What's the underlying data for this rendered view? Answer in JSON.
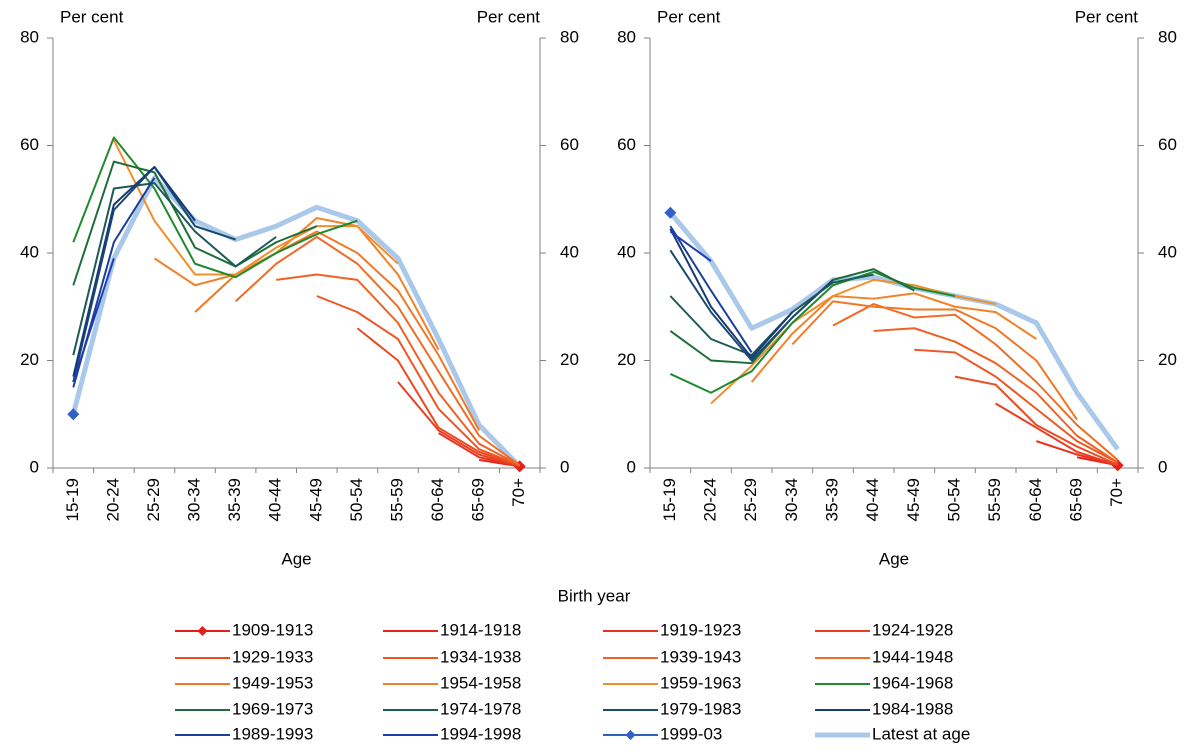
{
  "chart_data": [
    {
      "type": "line",
      "y_label": "Per cent",
      "y2_label": "Per cent",
      "x_label": "Age",
      "categories": [
        "15-19",
        "20-24",
        "25-29",
        "30-34",
        "35-39",
        "40-44",
        "45-49",
        "50-54",
        "55-59",
        "60-64",
        "65-69",
        "70+"
      ],
      "ylim": [
        0,
        80
      ],
      "yticks": [
        0,
        20,
        40,
        60,
        80
      ],
      "y2lim": [
        0,
        80
      ],
      "y2ticks": [
        0,
        20,
        40,
        60,
        80
      ],
      "series": [
        {
          "name": "1909-1913",
          "color": "#e41e1a",
          "marker": "diamond",
          "values": [
            null,
            null,
            null,
            null,
            null,
            null,
            null,
            null,
            null,
            null,
            null,
            0.3
          ]
        },
        {
          "name": "1914-1918",
          "color": "#e6261b",
          "values": [
            null,
            null,
            null,
            null,
            null,
            null,
            null,
            null,
            null,
            null,
            1.5,
            0.3
          ]
        },
        {
          "name": "1919-1923",
          "color": "#e8321d",
          "values": [
            null,
            null,
            null,
            null,
            null,
            null,
            null,
            null,
            null,
            6.5,
            2,
            0.3
          ]
        },
        {
          "name": "1924-1928",
          "color": "#ea3e1f",
          "values": [
            null,
            null,
            null,
            null,
            null,
            null,
            null,
            null,
            16,
            7,
            2.5,
            0.3
          ]
        },
        {
          "name": "1929-1933",
          "color": "#ec4a21",
          "values": [
            null,
            null,
            null,
            null,
            null,
            null,
            null,
            26,
            20,
            7.5,
            3,
            0.4
          ]
        },
        {
          "name": "1934-1938",
          "color": "#ee5623",
          "values": [
            null,
            null,
            null,
            null,
            null,
            null,
            32,
            29,
            24,
            11,
            3.5,
            0.5
          ]
        },
        {
          "name": "1939-1943",
          "color": "#ef6125",
          "values": [
            null,
            null,
            null,
            null,
            null,
            35,
            36,
            35,
            27,
            14,
            4.5,
            0.5
          ]
        },
        {
          "name": "1944-1948",
          "color": "#f06c26",
          "values": [
            null,
            null,
            null,
            null,
            31,
            38,
            43,
            38,
            30,
            18,
            6,
            0.5
          ]
        },
        {
          "name": "1949-1953",
          "color": "#f17727",
          "values": [
            null,
            null,
            null,
            29,
            36,
            40,
            44,
            40,
            33,
            21,
            7,
            null
          ]
        },
        {
          "name": "1954-1958",
          "color": "#f28229",
          "values": [
            null,
            null,
            39,
            34,
            36,
            40,
            46.5,
            45,
            36,
            22,
            null,
            null
          ]
        },
        {
          "name": "1959-1963",
          "color": "#f38e2c",
          "values": [
            null,
            61,
            46,
            36,
            36,
            41,
            45,
            45,
            38,
            null,
            null,
            null
          ]
        },
        {
          "name": "1964-1968",
          "color": "#1f8a2e",
          "values": [
            42,
            61.5,
            52,
            38,
            35.5,
            40,
            43.5,
            46,
            null,
            null,
            null,
            null
          ]
        },
        {
          "name": "1969-1973",
          "color": "#1d6e3a",
          "values": [
            34,
            57,
            55,
            41,
            37.5,
            42,
            45,
            null,
            null,
            null,
            null,
            null
          ]
        },
        {
          "name": "1974-1978",
          "color": "#1b5a55",
          "values": [
            21,
            52,
            53,
            44,
            37.5,
            43,
            null,
            null,
            null,
            null,
            null,
            null
          ]
        },
        {
          "name": "1979-1983",
          "color": "#1b4a6e",
          "values": [
            16,
            48,
            56,
            45,
            42.5,
            null,
            null,
            null,
            null,
            null,
            null,
            null
          ]
        },
        {
          "name": "1984-1988",
          "color": "#173a78",
          "values": [
            17,
            49,
            56,
            46,
            null,
            null,
            null,
            null,
            null,
            null,
            null,
            null
          ]
        },
        {
          "name": "1989-1993",
          "color": "#1a3e9c",
          "values": [
            15,
            42,
            54,
            null,
            null,
            null,
            null,
            null,
            null,
            null,
            null,
            null
          ]
        },
        {
          "name": "1994-1998",
          "color": "#1e3cb4",
          "values": [
            16,
            39,
            null,
            null,
            null,
            null,
            null,
            null,
            null,
            null,
            null,
            null
          ]
        },
        {
          "name": "1999-03",
          "color": "#3060c8",
          "marker": "diamond",
          "values": [
            10,
            null,
            null,
            null,
            null,
            null,
            null,
            null,
            null,
            null,
            null,
            null
          ]
        },
        {
          "name": "Latest at age",
          "color": "#a9c8ea",
          "line_width": 5,
          "values": [
            10,
            39,
            54,
            46,
            42.5,
            45,
            48.5,
            46,
            39,
            24,
            8,
            0.3
          ]
        }
      ]
    },
    {
      "type": "line",
      "y_label": "Per cent",
      "y2_label": "Per cent",
      "x_label": "Age",
      "categories": [
        "15-19",
        "20-24",
        "25-29",
        "30-34",
        "35-39",
        "40-44",
        "45-49",
        "50-54",
        "55-59",
        "60-64",
        "65-69",
        "70+"
      ],
      "ylim": [
        0,
        80
      ],
      "yticks": [
        0,
        20,
        40,
        60,
        80
      ],
      "y2lim": [
        0,
        80
      ],
      "y2ticks": [
        0,
        20,
        40,
        60,
        80
      ],
      "series": [
        {
          "name": "1909-1913",
          "color": "#e41e1a",
          "marker": "diamond",
          "values": [
            null,
            null,
            null,
            null,
            null,
            null,
            null,
            null,
            null,
            null,
            null,
            0.5
          ]
        },
        {
          "name": "1914-1918",
          "color": "#e6261b",
          "values": [
            null,
            null,
            null,
            null,
            null,
            null,
            null,
            null,
            null,
            null,
            2,
            0.5
          ]
        },
        {
          "name": "1919-1923",
          "color": "#e8321d",
          "values": [
            null,
            null,
            null,
            null,
            null,
            null,
            null,
            null,
            null,
            5,
            2.5,
            0.5
          ]
        },
        {
          "name": "1924-1928",
          "color": "#ea3e1f",
          "values": [
            null,
            null,
            null,
            null,
            null,
            null,
            null,
            null,
            12,
            7.5,
            3,
            0.5
          ]
        },
        {
          "name": "1929-1933",
          "color": "#ec4a21",
          "values": [
            null,
            null,
            null,
            null,
            null,
            null,
            null,
            17,
            15.5,
            8,
            4,
            0.6
          ]
        },
        {
          "name": "1934-1938",
          "color": "#ee5623",
          "values": [
            null,
            null,
            null,
            null,
            null,
            null,
            22,
            21.5,
            17,
            11,
            5,
            1
          ]
        },
        {
          "name": "1939-1943",
          "color": "#ef6125",
          "values": [
            null,
            null,
            null,
            null,
            null,
            25.5,
            26,
            23.5,
            19.5,
            14,
            6,
            1
          ]
        },
        {
          "name": "1944-1948",
          "color": "#f06c26",
          "values": [
            null,
            null,
            null,
            null,
            26.5,
            30.5,
            28,
            28.5,
            23,
            16,
            8,
            1.5
          ]
        },
        {
          "name": "1949-1953",
          "color": "#f17727",
          "values": [
            null,
            null,
            null,
            23,
            31,
            30,
            29.5,
            29.5,
            26,
            20,
            9,
            null
          ]
        },
        {
          "name": "1954-1958",
          "color": "#f28229",
          "values": [
            null,
            null,
            16,
            25,
            32,
            31.5,
            32.5,
            30,
            29,
            24,
            null,
            null
          ]
        },
        {
          "name": "1959-1963",
          "color": "#f38e2c",
          "values": [
            null,
            12,
            19,
            27,
            32,
            35,
            34,
            32,
            30.5,
            null,
            null,
            null
          ]
        },
        {
          "name": "1964-1968",
          "color": "#1f8a2e",
          "values": [
            17.5,
            14,
            18,
            27,
            34,
            36.5,
            33.5,
            32,
            null,
            null,
            null,
            null
          ]
        },
        {
          "name": "1969-1973",
          "color": "#1d6e3a",
          "values": [
            25.5,
            20,
            19.5,
            28,
            35,
            37,
            33,
            null,
            null,
            null,
            null,
            null
          ]
        },
        {
          "name": "1974-1978",
          "color": "#1b5a55",
          "values": [
            32,
            24,
            21,
            29,
            34.5,
            36,
            null,
            null,
            null,
            null,
            null,
            null
          ]
        },
        {
          "name": "1979-1983",
          "color": "#1b4a6e",
          "values": [
            40.5,
            29,
            20,
            28,
            35,
            null,
            null,
            null,
            null,
            null,
            null,
            null
          ]
        },
        {
          "name": "1984-1988",
          "color": "#173a78",
          "values": [
            44.5,
            30,
            20.5,
            29,
            null,
            null,
            null,
            null,
            null,
            null,
            null,
            null
          ]
        },
        {
          "name": "1989-1993",
          "color": "#1a3e9c",
          "values": [
            45,
            33,
            21.5,
            null,
            null,
            null,
            null,
            null,
            null,
            null,
            null,
            null
          ]
        },
        {
          "name": "1994-1998",
          "color": "#1e3cb4",
          "values": [
            44,
            38.5,
            null,
            null,
            null,
            null,
            null,
            null,
            null,
            null,
            null,
            null
          ]
        },
        {
          "name": "1999-03",
          "color": "#3060c8",
          "marker": "diamond",
          "values": [
            47.5,
            null,
            null,
            null,
            null,
            null,
            null,
            null,
            null,
            null,
            null,
            null
          ]
        },
        {
          "name": "Latest at age",
          "color": "#a9c8ea",
          "line_width": 5,
          "values": [
            47.5,
            38.5,
            26,
            29.5,
            35,
            35.5,
            33.5,
            32,
            30.5,
            27,
            14,
            3.5
          ]
        }
      ]
    }
  ],
  "legend": {
    "title": "Birth year"
  }
}
